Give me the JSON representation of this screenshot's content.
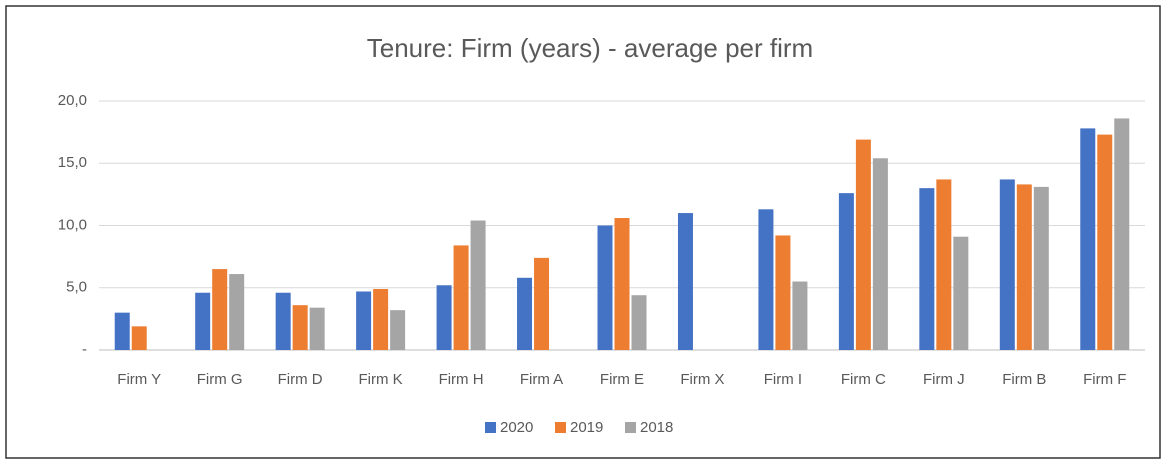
{
  "chart_data": {
    "type": "bar",
    "title": "Tenure: Firm (years) - average per firm",
    "categories": [
      "Firm Y",
      "Firm G",
      "Firm D",
      "Firm K",
      "Firm H",
      "Firm A",
      "Firm E",
      "Firm X",
      "Firm I",
      "Firm C",
      "Firm J",
      "Firm B",
      "Firm F"
    ],
    "series": [
      {
        "name": "2020",
        "color": "#4472c4",
        "values": [
          3.0,
          4.6,
          4.6,
          4.7,
          5.2,
          5.8,
          10.0,
          11.0,
          11.3,
          12.6,
          13.0,
          13.7,
          17.8
        ]
      },
      {
        "name": "2019",
        "color": "#ed7d31",
        "values": [
          1.9,
          6.5,
          3.6,
          4.9,
          8.4,
          7.4,
          10.6,
          null,
          9.2,
          16.9,
          13.7,
          13.3,
          17.3
        ]
      },
      {
        "name": "2018",
        "color": "#a5a5a5",
        "values": [
          null,
          6.1,
          3.4,
          3.2,
          10.4,
          null,
          4.4,
          null,
          5.5,
          15.4,
          9.1,
          13.1,
          18.6
        ]
      }
    ],
    "ylim": [
      0,
      20
    ],
    "yticks": [
      {
        "value": 0,
        "label": "-"
      },
      {
        "value": 5,
        "label": "5,0"
      },
      {
        "value": 10,
        "label": "10,0"
      },
      {
        "value": 15,
        "label": "15,0"
      },
      {
        "value": 20,
        "label": "20,0"
      }
    ],
    "grid": true,
    "legend": "bottom"
  }
}
